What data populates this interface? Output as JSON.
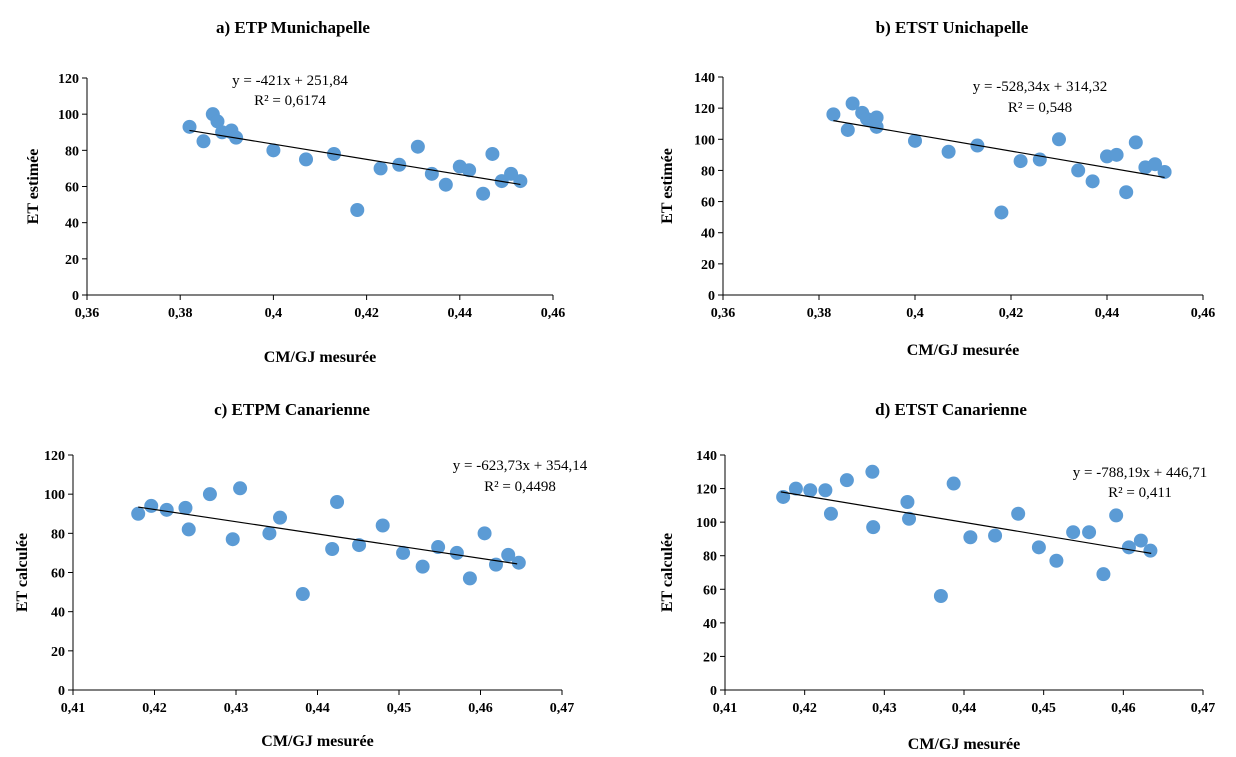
{
  "chart_data": [
    {
      "type": "scatter",
      "title": "a) ETP Munichapelle",
      "xlabel": "CM/GJ mesurée",
      "ylabel": "ET estimée",
      "xlim": [
        0.36,
        0.46
      ],
      "ylim": [
        0,
        120
      ],
      "xticks": [
        "0,36",
        "0,38",
        "0,4",
        "0,42",
        "0,44",
        "0,46"
      ],
      "xtick_values": [
        0.36,
        0.38,
        0.4,
        0.42,
        0.44,
        0.46
      ],
      "yticks": [
        "0",
        "20",
        "40",
        "60",
        "80",
        "100",
        "120"
      ],
      "ytick_values": [
        0,
        20,
        40,
        60,
        80,
        100,
        120
      ],
      "grid": false,
      "legend": "none",
      "color": "#5B9BD5",
      "trendline": {
        "slope": -421,
        "intercept": 251.84,
        "x_range": [
          0.382,
          0.453
        ]
      },
      "equation": "y = -421x + 251,84",
      "r2": "R² = 0,6174",
      "x": [
        0.382,
        0.385,
        0.387,
        0.388,
        0.389,
        0.391,
        0.391,
        0.392,
        0.4,
        0.407,
        0.413,
        0.418,
        0.423,
        0.427,
        0.431,
        0.434,
        0.437,
        0.44,
        0.442,
        0.445,
        0.447,
        0.449,
        0.451,
        0.453
      ],
      "y": [
        93,
        85,
        100,
        96,
        90,
        90,
        91,
        87,
        80,
        75,
        78,
        47,
        70,
        72,
        82,
        67,
        61,
        71,
        69,
        56,
        78,
        63,
        67,
        63
      ]
    },
    {
      "type": "scatter",
      "title": "b) ETST Unichapelle",
      "xlabel": "CM/GJ mesurée",
      "ylabel": "ET estimée",
      "xlim": [
        0.36,
        0.46
      ],
      "ylim": [
        0,
        140
      ],
      "xticks": [
        "0,36",
        "0,38",
        "0,4",
        "0,42",
        "0,44",
        "0,46"
      ],
      "xtick_values": [
        0.36,
        0.38,
        0.4,
        0.42,
        0.44,
        0.46
      ],
      "yticks": [
        "0",
        "20",
        "40",
        "60",
        "80",
        "100",
        "120",
        "140"
      ],
      "ytick_values": [
        0,
        20,
        40,
        60,
        80,
        100,
        120,
        140
      ],
      "grid": false,
      "legend": "none",
      "color": "#5B9BD5",
      "trendline": {
        "slope": -528.34,
        "intercept": 314.32,
        "x_range": [
          0.383,
          0.452
        ]
      },
      "equation": "y = -528,34x + 314,32",
      "r2": "R² = 0,548",
      "x": [
        0.383,
        0.386,
        0.387,
        0.389,
        0.39,
        0.391,
        0.392,
        0.392,
        0.4,
        0.407,
        0.413,
        0.418,
        0.422,
        0.426,
        0.43,
        0.434,
        0.437,
        0.44,
        0.442,
        0.444,
        0.446,
        0.448,
        0.45,
        0.452
      ],
      "y": [
        116,
        106,
        123,
        117,
        113,
        112,
        114,
        108,
        99,
        92,
        96,
        53,
        86,
        87,
        100,
        80,
        73,
        89,
        90,
        66,
        98,
        82,
        84,
        79
      ]
    },
    {
      "type": "scatter",
      "title": "c) ETPM Canarienne",
      "xlabel": "CM/GJ mesurée",
      "ylabel": "ET calculée",
      "xlim": [
        0.41,
        0.47
      ],
      "ylim": [
        0,
        120
      ],
      "xticks": [
        "0,41",
        "0,42",
        "0,43",
        "0,44",
        "0,45",
        "0,46",
        "0,47"
      ],
      "xtick_values": [
        0.41,
        0.42,
        0.43,
        0.44,
        0.45,
        0.46,
        0.47
      ],
      "yticks": [
        "0",
        "20",
        "40",
        "60",
        "80",
        "100",
        "120"
      ],
      "ytick_values": [
        0,
        20,
        40,
        60,
        80,
        100,
        120
      ],
      "grid": false,
      "legend": "none",
      "color": "#5B9BD5",
      "trendline": {
        "slope": -623.73,
        "intercept": 354.14,
        "x_range": [
          0.418,
          0.4645
        ]
      },
      "equation": "y = -623,73x + 354,14",
      "r2": "R² = 0,4498",
      "x": [
        0.418,
        0.4196,
        0.4215,
        0.4238,
        0.4242,
        0.4268,
        0.4296,
        0.4305,
        0.4341,
        0.4354,
        0.4382,
        0.4418,
        0.4424,
        0.4451,
        0.448,
        0.4505,
        0.4529,
        0.4548,
        0.4571,
        0.4587,
        0.4605,
        0.4619,
        0.4634,
        0.4647
      ],
      "y": [
        90,
        94,
        92,
        93,
        82,
        100,
        77,
        103,
        80,
        88,
        49,
        72,
        96,
        74,
        84,
        70,
        63,
        73,
        70,
        57,
        80,
        64,
        69,
        65
      ]
    },
    {
      "type": "scatter",
      "title": "d) ETST Canarienne",
      "xlabel": "CM/GJ mesurée",
      "ylabel": "ET calculée",
      "xlim": [
        0.41,
        0.47
      ],
      "ylim": [
        0,
        140
      ],
      "xticks": [
        "0,41",
        "0,42",
        "0,43",
        "0,44",
        "0,45",
        "0,46",
        "0,47"
      ],
      "xtick_values": [
        0.41,
        0.42,
        0.43,
        0.44,
        0.45,
        0.46,
        0.47
      ],
      "yticks": [
        "0",
        "20",
        "40",
        "60",
        "80",
        "100",
        "120",
        "140"
      ],
      "ytick_values": [
        0,
        20,
        40,
        60,
        80,
        100,
        120,
        140
      ],
      "grid": false,
      "legend": "none",
      "color": "#5B9BD5",
      "trendline": {
        "slope": -788.19,
        "intercept": 446.71,
        "x_range": [
          0.417,
          0.4635
        ]
      },
      "equation": "y = -788,19x + 446,71",
      "r2": "R² = 0,411",
      "x": [
        0.4173,
        0.4189,
        0.4207,
        0.4226,
        0.4233,
        0.4253,
        0.4285,
        0.4286,
        0.4329,
        0.4331,
        0.4371,
        0.4387,
        0.4408,
        0.4439,
        0.4468,
        0.4494,
        0.4516,
        0.4537,
        0.4557,
        0.4575,
        0.4591,
        0.4607,
        0.4622,
        0.4634
      ],
      "y": [
        115,
        120,
        119,
        119,
        105,
        125,
        130,
        97,
        112,
        102,
        56,
        123,
        91,
        92,
        105,
        85,
        77,
        94,
        94,
        69,
        104,
        85,
        89,
        83
      ]
    }
  ]
}
